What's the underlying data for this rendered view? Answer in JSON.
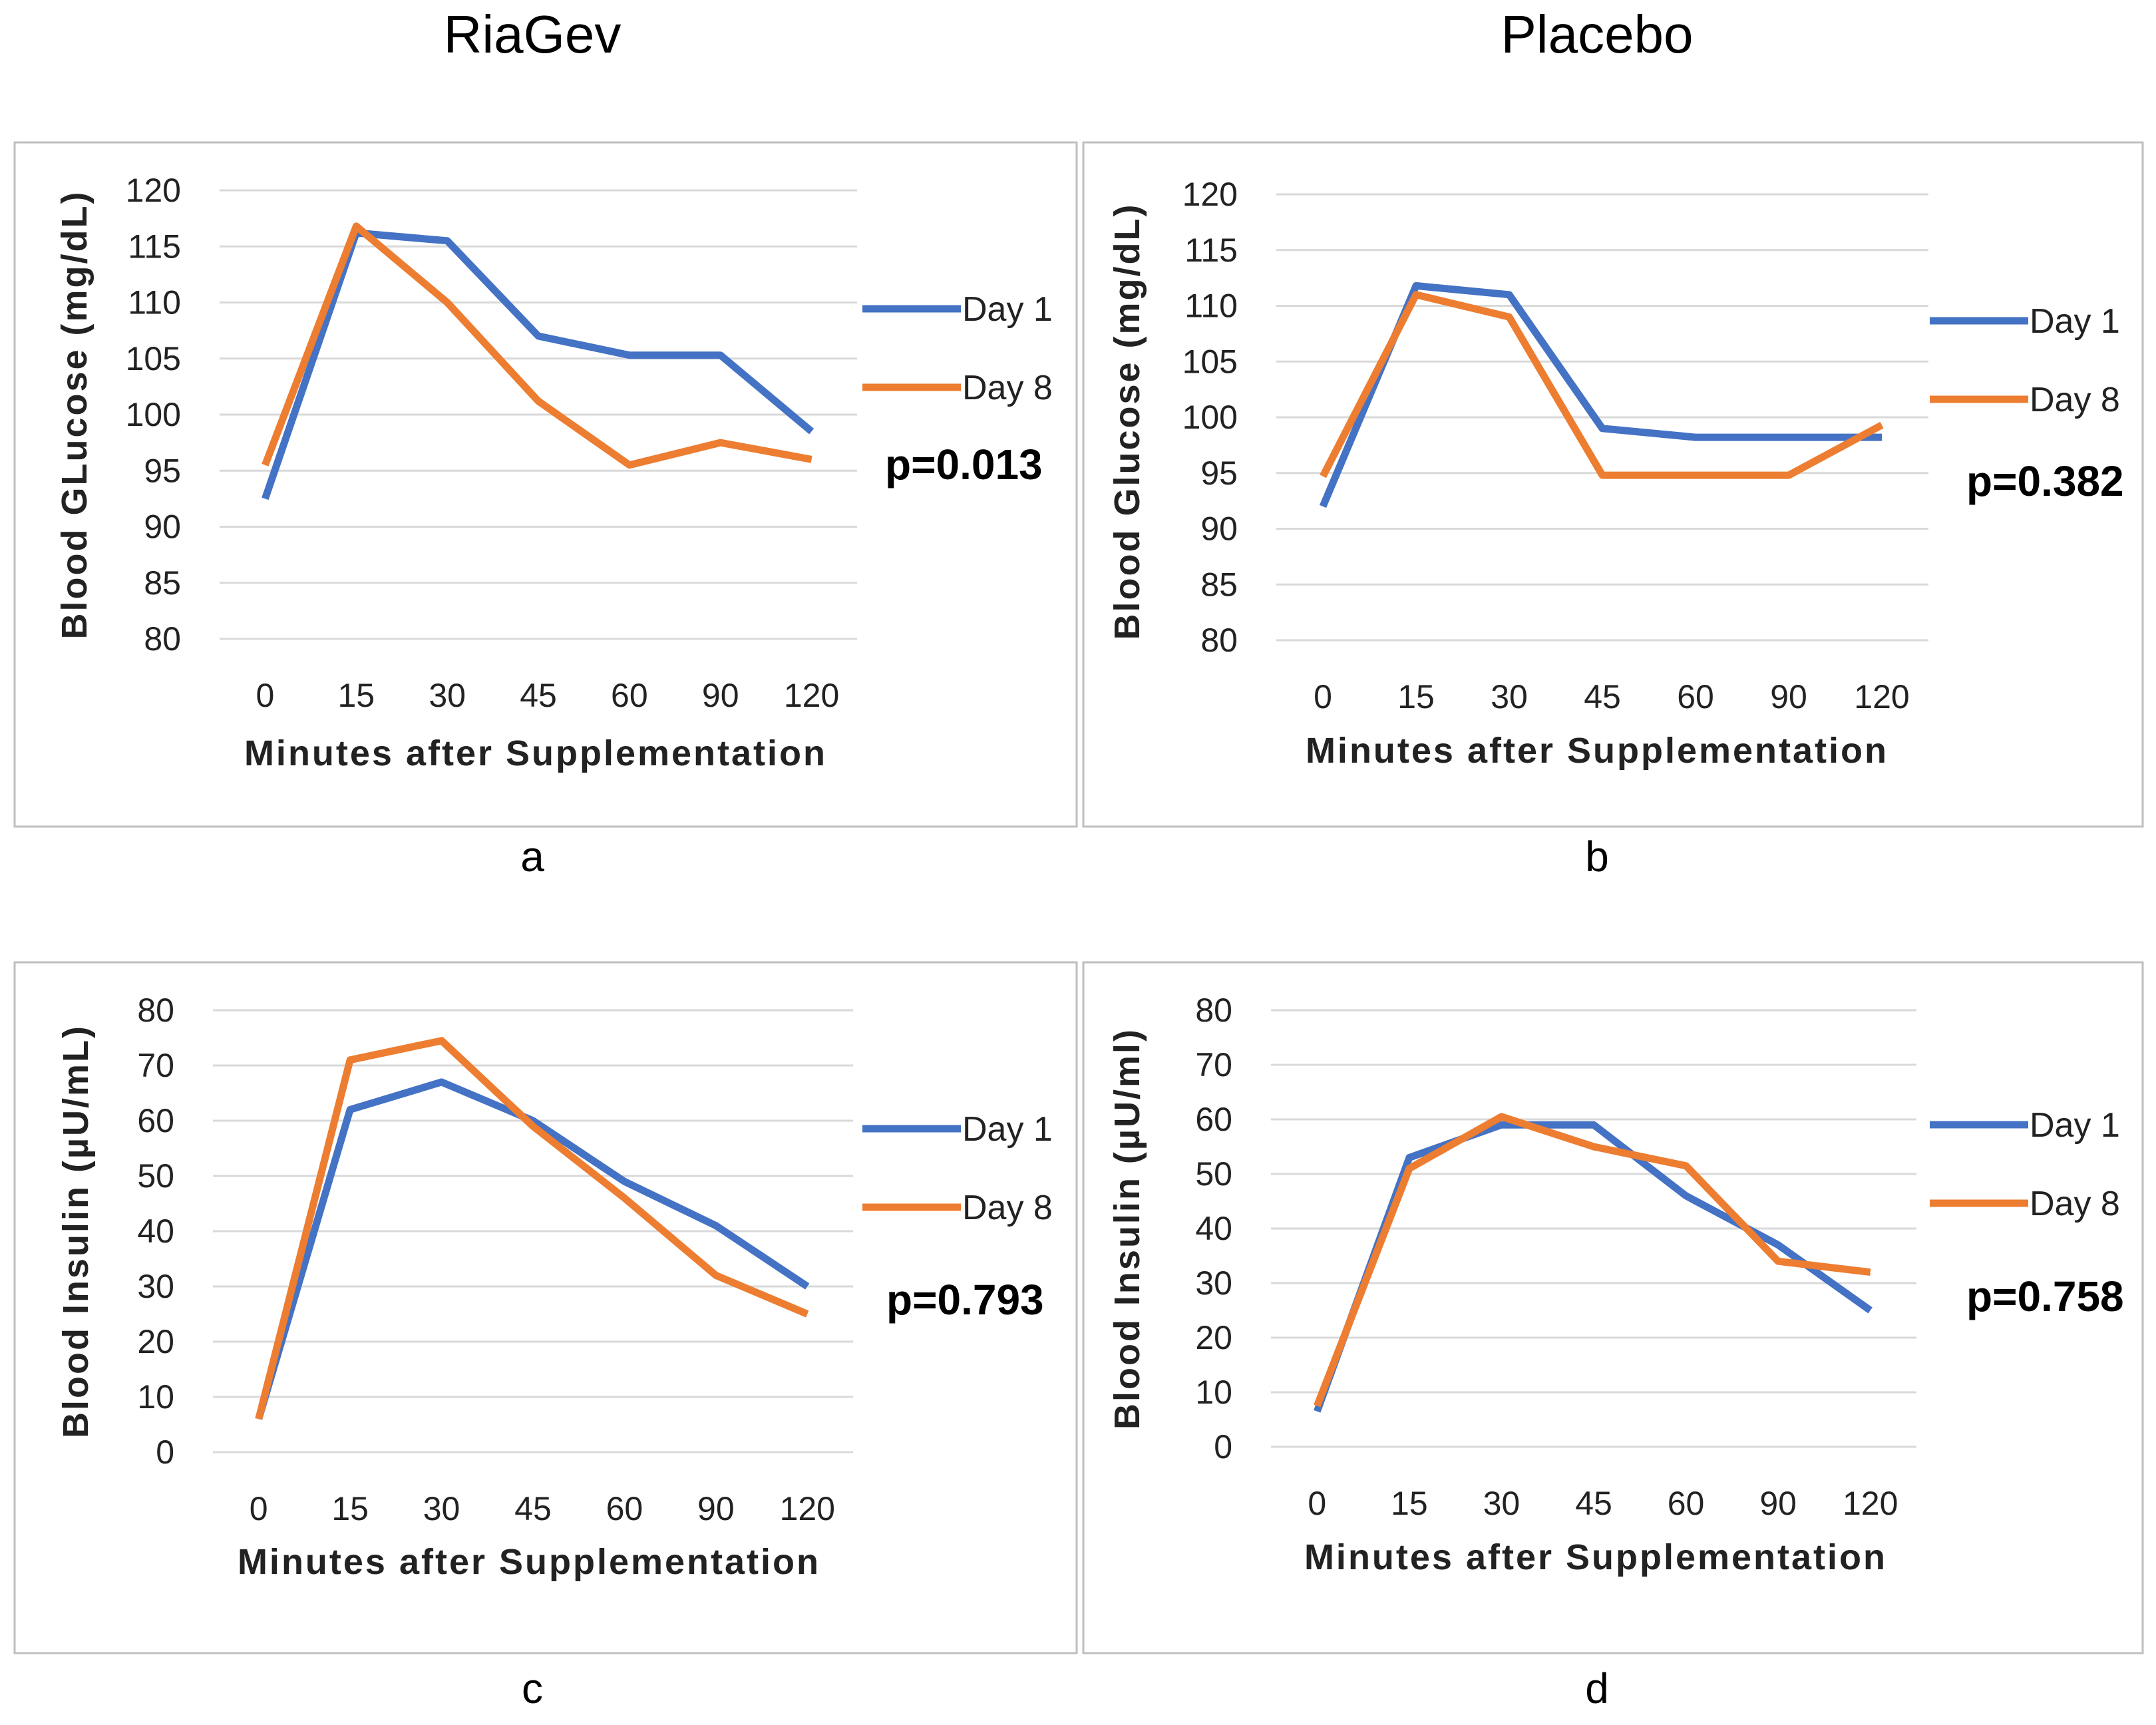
{
  "column_titles": [
    "RiaGev",
    "Placebo"
  ],
  "colors": {
    "day1": "#4472C4",
    "day8": "#ED7D31",
    "grid": "#D9D9D9",
    "frame": "#BFBFBF"
  },
  "chart_data": [
    {
      "type": "line",
      "panel_label": "a",
      "categories": [
        "0",
        "15",
        "30",
        "45",
        "60",
        "90",
        "120"
      ],
      "series": [
        {
          "name": "Day 1",
          "values": [
            92.5,
            116.2,
            115.5,
            107,
            105.3,
            105.3,
            98.5
          ]
        },
        {
          "name": "Day 8",
          "values": [
            95.5,
            116.8,
            110,
            101.2,
            95.5,
            97.5,
            96
          ]
        }
      ],
      "ylabel": "Blood GLucose (mg/dL)",
      "xlabel": "Minutes after Supplementation",
      "yticks": [
        80,
        85,
        90,
        95,
        100,
        105,
        110,
        115,
        120
      ],
      "ylim": [
        80,
        120
      ],
      "annotation": "p=0.013",
      "legend": "right"
    },
    {
      "type": "line",
      "panel_label": "b",
      "categories": [
        "0",
        "15",
        "30",
        "45",
        "60",
        "90",
        "120"
      ],
      "series": [
        {
          "name": "Day 1",
          "values": [
            92,
            111.8,
            111,
            99,
            98.2,
            98.2,
            98.2
          ]
        },
        {
          "name": "Day 8",
          "values": [
            94.7,
            111,
            109,
            94.8,
            94.8,
            94.8,
            99.3
          ]
        }
      ],
      "ylabel": "Blood Glucose (mg/dL)",
      "xlabel": "Minutes after Supplementation",
      "yticks": [
        80,
        85,
        90,
        95,
        100,
        105,
        110,
        115,
        120
      ],
      "ylim": [
        80,
        120
      ],
      "annotation": "p=0.382",
      "legend": "right"
    },
    {
      "type": "line",
      "panel_label": "c",
      "categories": [
        "0",
        "15",
        "30",
        "45",
        "60",
        "90",
        "120"
      ],
      "series": [
        {
          "name": "Day 1",
          "values": [
            6,
            62,
            67,
            60,
            49,
            41,
            30
          ]
        },
        {
          "name": "Day 8",
          "values": [
            6,
            71,
            74.5,
            59,
            46,
            32,
            25
          ]
        }
      ],
      "ylabel": "Blood Insulin (µU/mL)",
      "xlabel": "Minutes after Supplementation",
      "yticks": [
        0,
        10,
        20,
        30,
        40,
        50,
        60,
        70,
        80
      ],
      "ylim": [
        0,
        80
      ],
      "annotation": "p=0.793",
      "legend": "right"
    },
    {
      "type": "line",
      "panel_label": "d",
      "categories": [
        "0",
        "15",
        "30",
        "45",
        "60",
        "90",
        "120"
      ],
      "series": [
        {
          "name": "Day 1",
          "values": [
            6.5,
            53,
            59,
            59,
            46,
            37,
            25
          ]
        },
        {
          "name": "Day 8",
          "values": [
            7.5,
            51,
            60.5,
            55,
            51.5,
            34,
            32
          ]
        }
      ],
      "ylabel": "Blood Insulin (µU/ml)",
      "xlabel": "Minutes after Supplementation",
      "yticks": [
        0,
        10,
        20,
        30,
        40,
        50,
        60,
        70,
        80
      ],
      "ylim": [
        0,
        80
      ],
      "annotation": "p=0.758",
      "legend": "right"
    }
  ]
}
